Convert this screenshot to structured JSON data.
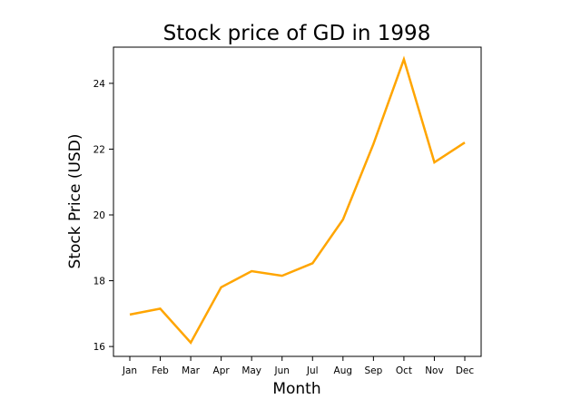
{
  "chart_data": {
    "type": "line",
    "title": "Stock price of GD in 1998",
    "xlabel": "Month",
    "ylabel": "Stock Price (USD)",
    "categories": [
      "Jan",
      "Feb",
      "Mar",
      "Apr",
      "May",
      "Jun",
      "Jul",
      "Aug",
      "Sep",
      "Oct",
      "Nov",
      "Dec"
    ],
    "series": [
      {
        "values": [
          16.97,
          17.15,
          16.12,
          17.8,
          18.29,
          18.15,
          18.53,
          19.86,
          22.16,
          24.73,
          21.6,
          22.2
        ],
        "color": "#FFA500"
      }
    ],
    "yticks": [
      16,
      18,
      20,
      22,
      24
    ],
    "ylim": [
      15.7,
      25.1
    ],
    "grid": false,
    "legend": "none"
  }
}
